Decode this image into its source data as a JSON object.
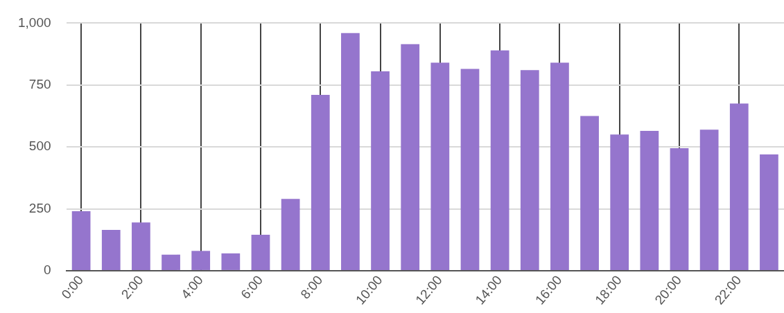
{
  "chart_data": {
    "type": "bar",
    "categories": [
      "0:00",
      null,
      "2:00",
      null,
      "4:00",
      null,
      "6:00",
      null,
      "8:00",
      null,
      "10:00",
      null,
      "12:00",
      null,
      "14:00",
      null,
      "16:00",
      null,
      "18:00",
      null,
      "20:00",
      null,
      "22:00",
      null
    ],
    "values": [
      240,
      165,
      195,
      65,
      80,
      70,
      145,
      290,
      710,
      960,
      805,
      915,
      840,
      815,
      890,
      810,
      840,
      625,
      550,
      565,
      495,
      570,
      675,
      470
    ],
    "color": "#9575cd",
    "ylim": [
      0,
      1000
    ],
    "yticks": [
      0,
      {
        "value": 250,
        "label": "250"
      },
      {
        "value": 500,
        "label": "500"
      },
      {
        "value": 750,
        "label": "750"
      },
      {
        "value": 1000,
        "label": "1,000"
      }
    ],
    "grid": true,
    "legend": false
  }
}
